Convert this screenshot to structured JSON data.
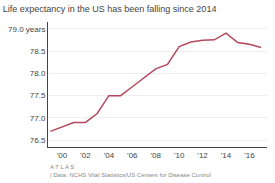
{
  "chart_data": {
    "type": "line",
    "title": "Life expectancy in the US has been falling since 2014",
    "annotations": [
      "A T L A S",
      "| Data: NCHS Vital Statistics/US Centers for Disease Control"
    ],
    "x": [
      1999,
      2000,
      2001,
      2002,
      2003,
      2004,
      2005,
      2006,
      2007,
      2008,
      2009,
      2010,
      2011,
      2012,
      2013,
      2014,
      2015,
      2016,
      2017
    ],
    "values": [
      76.7,
      76.8,
      76.9,
      76.9,
      77.1,
      77.5,
      77.5,
      77.7,
      77.9,
      78.1,
      78.2,
      78.6,
      78.7,
      78.74,
      78.75,
      78.9,
      78.69,
      78.65,
      78.58
    ],
    "color": "#b5485d",
    "xlim": [
      1998.8,
      2017.5
    ],
    "xticks": [
      {
        "value": 2000,
        "label": "'00"
      },
      {
        "value": 2002,
        "label": "'02"
      },
      {
        "value": 2004,
        "label": "'04"
      },
      {
        "value": 2006,
        "label": "'06"
      },
      {
        "value": 2008,
        "label": "'08"
      },
      {
        "value": 2010,
        "label": "'10"
      },
      {
        "value": 2012,
        "label": "'12"
      },
      {
        "value": 2014,
        "label": "'14"
      },
      {
        "value": 2016,
        "label": "'16"
      }
    ],
    "ylim": [
      76.35,
      79.15
    ],
    "yticks": [
      76.5,
      {
        "value": 77.0,
        "label": "77.0"
      },
      77.5,
      {
        "value": 78.0,
        "label": "78.0"
      },
      78.5,
      {
        "value": 79.0,
        "label": "79.0 years"
      }
    ],
    "grid": true
  }
}
